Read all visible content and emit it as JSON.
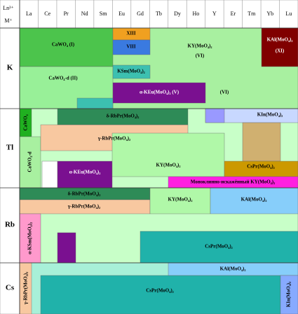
{
  "header": {
    "ln": "Ln³⁺",
    "m": "M⁺",
    "columns": [
      "La",
      "Ce",
      "Pr",
      "Nd",
      "Sm",
      "Eu",
      "Gd",
      "Tb",
      "Dy",
      "Ho",
      "Y",
      "Er",
      "Tm",
      "Yb",
      "Lu"
    ]
  },
  "rows": [
    "K",
    "Tl",
    "Rb",
    "Cs"
  ],
  "labels": [
    "CaWO₄ (I)",
    "CaWO₄-d (II)",
    "XIII",
    "VIII",
    "KSm(MoO₄)₂",
    "KY(MoO₄)₂",
    "(VI)",
    "α-KEu(MoO₄)₂ (V)",
    "(VI)",
    "KAl(MoO₄)₂",
    "(XI)",
    "CaWO₄",
    "CaWO₄-d",
    "δ-RbPr(MoO₄)₂",
    "γ-RbPr(MoO₄)₂",
    "?",
    "α-KEu(MoO₄)₂",
    "KY(MoO₄)₂",
    "KIn(MoO₄)₂",
    "CsPr(MoO₄)₂",
    "Моноклинно-искажённый KY(MoO₄)₂",
    "δ-RbPr(MoO₄)₂",
    "γ-RbPr(MoO₄)₂",
    "KY(MoO₄)₂",
    "KAl(MoO₄)₂",
    "α-KSm(MoO₄)₂",
    "CsPr(MoO₄)₂",
    "γ-RbPr(MoO₄)₂",
    "KAl(MoO₄)₂",
    "CsPr(MoO₄)₂",
    "KIn(MoO₄)₂"
  ]
}
